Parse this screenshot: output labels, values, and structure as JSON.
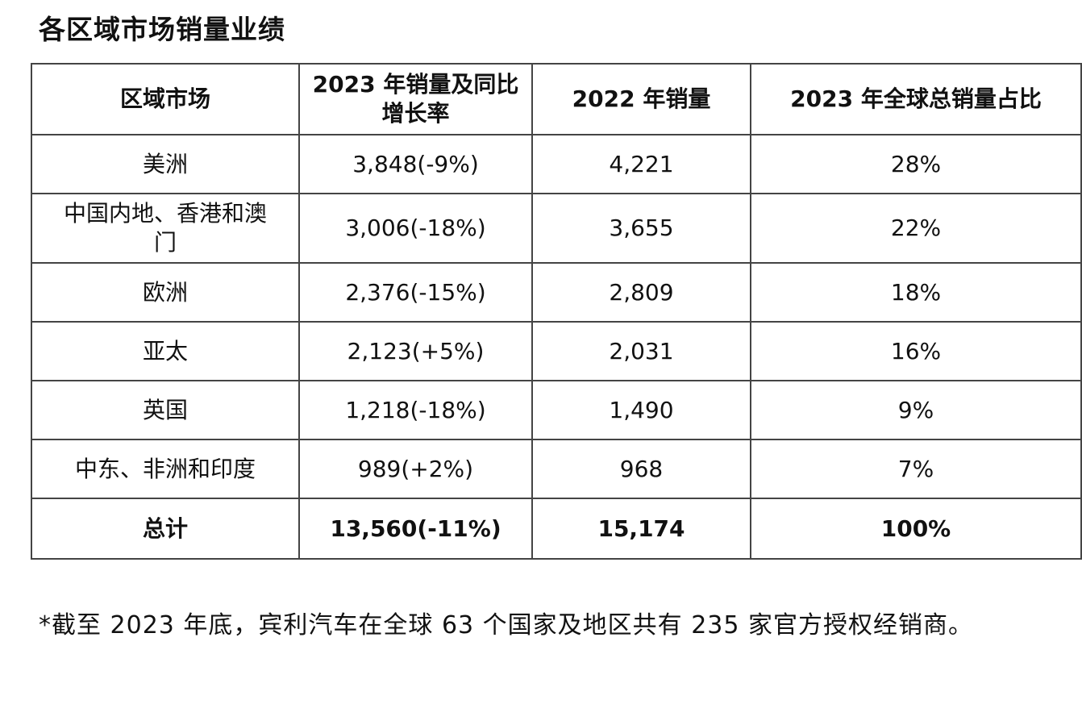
{
  "title": "各区域市场销量业绩",
  "table": {
    "headers": [
      "区域市场",
      "2023 年销量及同比增长率",
      "2022 年销量",
      "2023 年全球总销量占比"
    ],
    "rows": [
      {
        "region": "美洲",
        "sales_2023": "3,848(-9%)",
        "sales_2022": "4,221",
        "share_2023": "28%"
      },
      {
        "region": "中国内地、香港和澳门",
        "sales_2023": "3,006(-18%)",
        "sales_2022": "3,655",
        "share_2023": "22%"
      },
      {
        "region": "欧洲",
        "sales_2023": "2,376(-15%)",
        "sales_2022": "2,809",
        "share_2023": "18%"
      },
      {
        "region": "亚太",
        "sales_2023": "2,123(+5%)",
        "sales_2022": "2,031",
        "share_2023": "16%"
      },
      {
        "region": "英国",
        "sales_2023": "1,218(-18%)",
        "sales_2022": "1,490",
        "share_2023": "9%"
      },
      {
        "region": "中东、非洲和印度",
        "sales_2023": "989(+2%)",
        "sales_2022": "968",
        "share_2023": "7%"
      }
    ],
    "total": {
      "region": "总计",
      "sales_2023": "13,560(-11%)",
      "sales_2022": "15,174",
      "share_2023": "100%"
    }
  },
  "footnote": "*截至 2023 年底，宾利汽车在全球 63 个国家及地区共有 235 家官方授权经销商。"
}
